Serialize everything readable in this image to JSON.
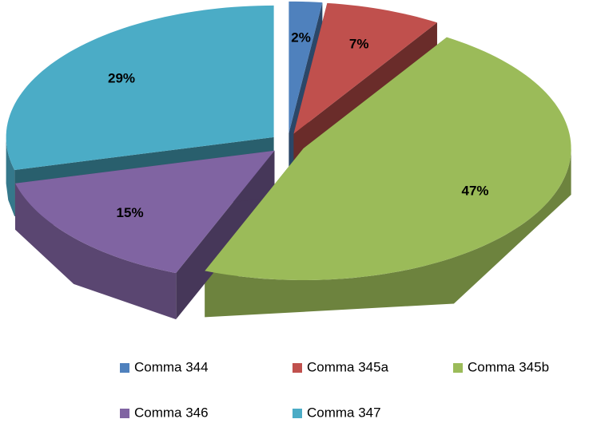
{
  "chart_data": {
    "type": "pie3d",
    "categories": [
      "Comma 344",
      "Comma 345a",
      "Comma 345b",
      "Comma 346",
      "Comma 347"
    ],
    "values": [
      2,
      7,
      47,
      15,
      29
    ],
    "value_labels": [
      "2%",
      "7%",
      "47%",
      "15%",
      "29%"
    ],
    "colors": [
      "#4f81bd",
      "#c0504d",
      "#9bbb59",
      "#8064a2",
      "#4bacc6"
    ],
    "legend": "bottom"
  }
}
